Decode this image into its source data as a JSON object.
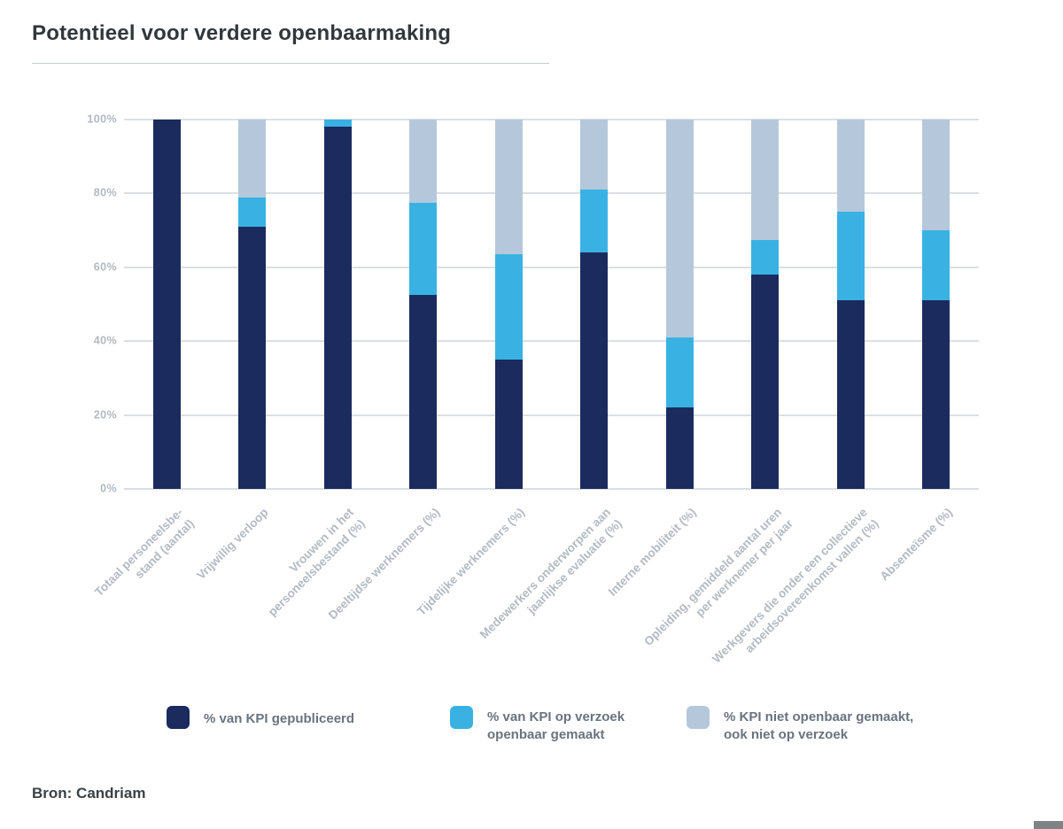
{
  "page": {
    "title": "Potentieel voor verdere openbaarmaking",
    "source": "Bron: Candriam"
  },
  "legend": {
    "items": [
      {
        "name": "published",
        "color": "#1b2b5e",
        "lines": [
          "% van KPI gepubliceerd"
        ]
      },
      {
        "name": "on-request",
        "color": "#39b2e3",
        "lines": [
          "% van KPI op verzoek",
          "openbaar gemaakt"
        ]
      },
      {
        "name": "not-disclosed",
        "color": "#b5c8db",
        "lines": [
          "% KPI niet openbaar gemaakt,",
          "ook niet op verzoek"
        ]
      }
    ]
  },
  "chart_data": {
    "type": "bar",
    "subtype": "stacked-percentage",
    "title": "Potentieel voor verdere openbaarmaking",
    "xlabel": "",
    "ylabel": "",
    "ylim": [
      0,
      100
    ],
    "grid": true,
    "legend_position": "bottom",
    "y_ticks": [
      {
        "label": "100%",
        "value": 100
      },
      {
        "label": "80%",
        "value": 80
      },
      {
        "label": "60%",
        "value": 60
      },
      {
        "label": "40%",
        "value": 40
      },
      {
        "label": "20%",
        "value": 20
      },
      {
        "label": "0%",
        "value": 0
      }
    ],
    "categories": [
      "Totaal personeelsbestand (aantal)",
      "Vrijwillig verloop",
      "Vrouwen in het personeelsbestand (%)",
      "Deeltijdse werknemers (%)",
      "Tijdelijke werknemers (%)",
      "Medewerkers onderworpen aan jaarlijkse evaluatie (%)",
      "Interne mobiliteit (%)",
      "Opleiding, gemiddeld aantal uren per werknemer per jaar",
      "Werkgevers die onder een collectieve arbeidsovereenkomst vallen (%)",
      "Absenteïsme (%)"
    ],
    "category_label_lines": [
      [
        "Totaal personeelsbe-",
        "stand (aantal)"
      ],
      [
        "Vrijwillig verloop"
      ],
      [
        "Vrouwen in het",
        "personeelsbestand (%)"
      ],
      [
        "Deeltijdse werknemers (%)"
      ],
      [
        "Tijdelijke werknemers (%)"
      ],
      [
        "Medewerkers onderworpen aan",
        "jaarlijkse evaluatie (%)"
      ],
      [
        "Interne mobiliteit (%)"
      ],
      [
        "Opleiding, gemiddeld aantal uren",
        "per werknemer per jaar"
      ],
      [
        "Werkgevers die onder een collectieve",
        "arbeidsovereenkomst vallen (%)"
      ],
      [
        "Absenteïsme (%)"
      ]
    ],
    "series": [
      {
        "name": "% van KPI gepubliceerd",
        "color": "#1b2b5e",
        "values": [
          100,
          71,
          98,
          52.5,
          35,
          64,
          22,
          58,
          51,
          51
        ]
      },
      {
        "name": "% van KPI op verzoek openbaar gemaakt",
        "color": "#39b2e3",
        "values": [
          0,
          8,
          2,
          25,
          28.5,
          17,
          19,
          9.5,
          24,
          19
        ]
      },
      {
        "name": "% KPI niet openbaar gemaakt, ook niet op verzoek",
        "color": "#b5c8db",
        "values": [
          0,
          21,
          0,
          22.5,
          36.5,
          19,
          59,
          32.5,
          25,
          30
        ]
      }
    ]
  },
  "decor": {
    "corner_color": "#808386"
  }
}
